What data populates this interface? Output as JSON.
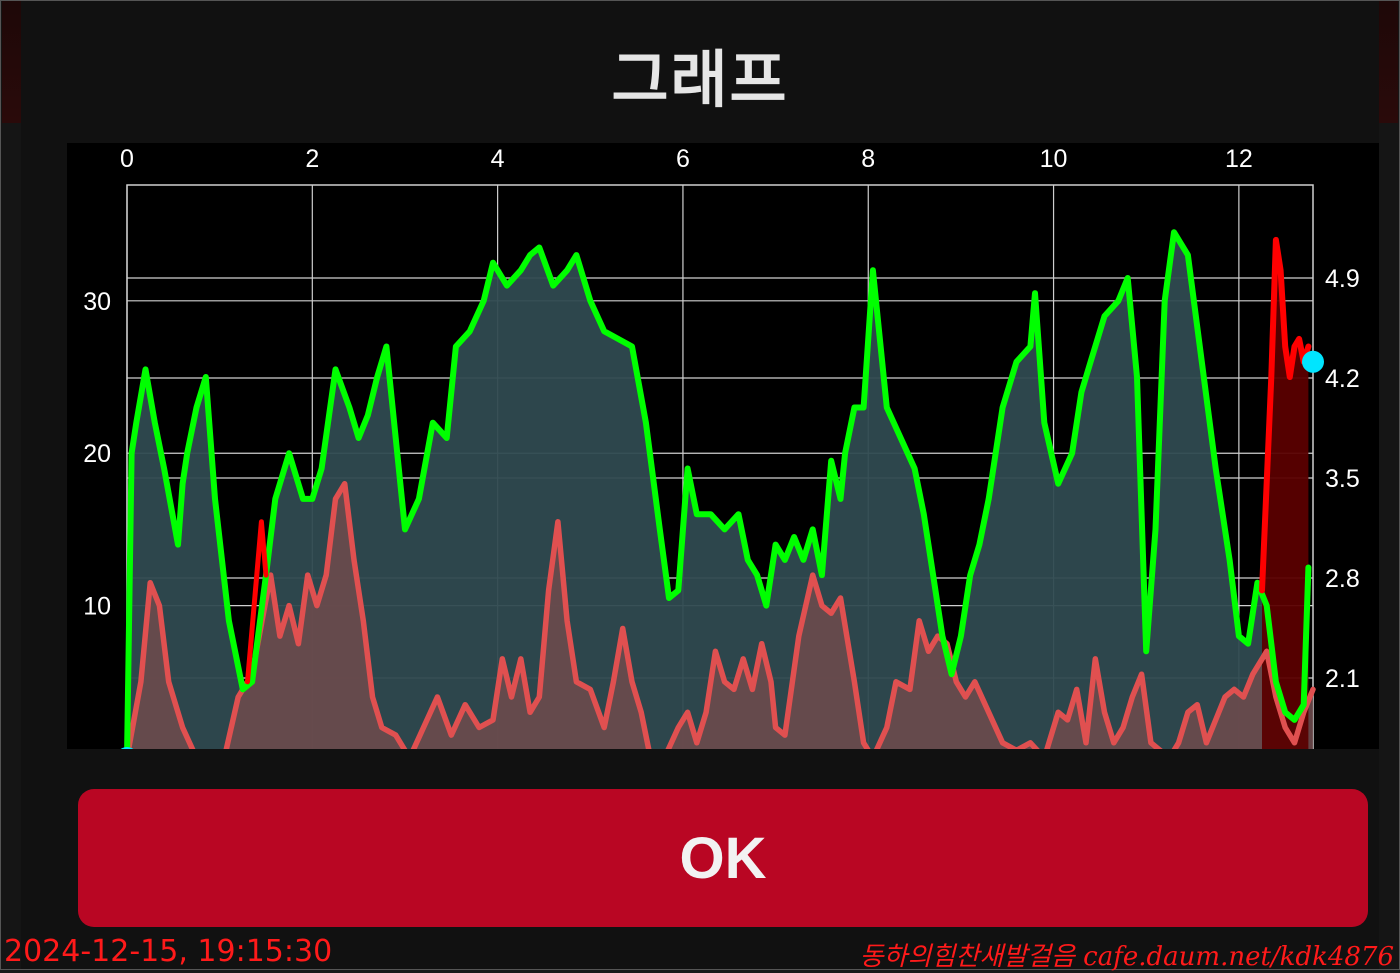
{
  "dialog": {
    "title": "그래프",
    "ok_label": "OK"
  },
  "watermark": {
    "timestamp": "2024-12-15, 19:15:30",
    "site": "동하의힘찬새발걸음 cafe.daum.net/kdk4876"
  },
  "colors": {
    "background": "#111111",
    "primary_line": "#00ff00",
    "primary_fill": "#2f4a50",
    "secondary_line": "#e05050",
    "secondary_fill": "#6b4a4d",
    "highlight_line": "#ff0000",
    "highlight_fill": "#5a0000",
    "marker": "#00e5ff",
    "button": "#b90623"
  },
  "chart_data": {
    "type": "area",
    "x_axis": {
      "position": "top",
      "ticks": [
        0,
        2,
        4,
        6,
        8,
        10,
        12
      ],
      "range": [
        0,
        12.8
      ]
    },
    "y_left": {
      "ticks": [
        10,
        20,
        30
      ],
      "range": [
        0,
        37.6
      ]
    },
    "y_right": {
      "ticks": [
        2.1,
        2.8,
        3.5,
        4.2,
        4.9
      ]
    },
    "grid": true,
    "series": [
      {
        "line_color": "#00ff00",
        "axis": "left",
        "points": [
          [
            0,
            0
          ],
          [
            0.05,
            20
          ],
          [
            0.1,
            22
          ],
          [
            0.2,
            25.5
          ],
          [
            0.3,
            22
          ],
          [
            0.4,
            19
          ],
          [
            0.55,
            14
          ],
          [
            0.6,
            18
          ],
          [
            0.65,
            20
          ],
          [
            0.75,
            23
          ],
          [
            0.85,
            25
          ],
          [
            0.95,
            17
          ],
          [
            1.1,
            9
          ],
          [
            1.25,
            4.5
          ],
          [
            1.35,
            5
          ],
          [
            1.5,
            12
          ],
          [
            1.6,
            17
          ],
          [
            1.75,
            20
          ],
          [
            1.9,
            17
          ],
          [
            2,
            17
          ],
          [
            2.1,
            19
          ],
          [
            2.25,
            25.5
          ],
          [
            2.4,
            23
          ],
          [
            2.5,
            21
          ],
          [
            2.6,
            22.5
          ],
          [
            2.7,
            25
          ],
          [
            2.8,
            27
          ],
          [
            2.9,
            21
          ],
          [
            3,
            15
          ],
          [
            3.15,
            17
          ],
          [
            3.3,
            22
          ],
          [
            3.45,
            21
          ],
          [
            3.55,
            27
          ],
          [
            3.7,
            28
          ],
          [
            3.85,
            30
          ],
          [
            3.95,
            32.5
          ],
          [
            4.1,
            31
          ],
          [
            4.25,
            32
          ],
          [
            4.35,
            33
          ],
          [
            4.45,
            33.5
          ],
          [
            4.6,
            31
          ],
          [
            4.75,
            32
          ],
          [
            4.85,
            33
          ],
          [
            5,
            30
          ],
          [
            5.15,
            28
          ],
          [
            5.3,
            27.5
          ],
          [
            5.45,
            27
          ],
          [
            5.6,
            22
          ],
          [
            5.75,
            15
          ],
          [
            5.85,
            10.5
          ],
          [
            5.95,
            11
          ],
          [
            6.05,
            19
          ],
          [
            6.15,
            16
          ],
          [
            6.3,
            16
          ],
          [
            6.45,
            15
          ],
          [
            6.6,
            16
          ],
          [
            6.7,
            13
          ],
          [
            6.8,
            12
          ],
          [
            6.9,
            10
          ],
          [
            7,
            14
          ],
          [
            7.1,
            13
          ],
          [
            7.2,
            14.5
          ],
          [
            7.3,
            13
          ],
          [
            7.4,
            15
          ],
          [
            7.5,
            12
          ],
          [
            7.6,
            19.5
          ],
          [
            7.7,
            17
          ],
          [
            7.75,
            20
          ],
          [
            7.85,
            23
          ],
          [
            7.95,
            23
          ],
          [
            8.05,
            32
          ],
          [
            8.2,
            23
          ],
          [
            8.35,
            21
          ],
          [
            8.5,
            19
          ],
          [
            8.6,
            16
          ],
          [
            8.7,
            12
          ],
          [
            8.8,
            8
          ],
          [
            8.9,
            5.5
          ],
          [
            9,
            8
          ],
          [
            9.1,
            12
          ],
          [
            9.2,
            14
          ],
          [
            9.3,
            17
          ],
          [
            9.45,
            23
          ],
          [
            9.6,
            26
          ],
          [
            9.75,
            27
          ],
          [
            9.8,
            30.5
          ],
          [
            9.9,
            22
          ],
          [
            10.05,
            18
          ],
          [
            10.2,
            20
          ],
          [
            10.3,
            24
          ],
          [
            10.4,
            26
          ],
          [
            10.55,
            29
          ],
          [
            10.7,
            30
          ],
          [
            10.8,
            31.5
          ],
          [
            10.9,
            25
          ],
          [
            11,
            7
          ],
          [
            11.1,
            15
          ],
          [
            11.2,
            30
          ],
          [
            11.3,
            34.5
          ],
          [
            11.45,
            33
          ],
          [
            11.6,
            26
          ],
          [
            11.75,
            19
          ],
          [
            11.9,
            13
          ],
          [
            12,
            8
          ],
          [
            12.1,
            7.5
          ],
          [
            12.2,
            11.5
          ],
          [
            12.3,
            10
          ],
          [
            12.4,
            5
          ],
          [
            12.5,
            3
          ],
          [
            12.6,
            2.5
          ],
          [
            12.7,
            3.5
          ],
          [
            12.75,
            12.5
          ]
        ]
      },
      {
        "line_color": "#e05050",
        "axis": "left",
        "points": [
          [
            0,
            0
          ],
          [
            0.15,
            5
          ],
          [
            0.25,
            11.5
          ],
          [
            0.35,
            10
          ],
          [
            0.45,
            5
          ],
          [
            0.6,
            2
          ],
          [
            0.75,
            0
          ],
          [
            1.05,
            0
          ],
          [
            1.2,
            4
          ],
          [
            1.35,
            5.5
          ],
          [
            1.55,
            12
          ],
          [
            1.65,
            8
          ],
          [
            1.75,
            10
          ],
          [
            1.85,
            7.5
          ],
          [
            1.95,
            12
          ],
          [
            2.05,
            10
          ],
          [
            2.15,
            12
          ],
          [
            2.25,
            17
          ],
          [
            2.35,
            18
          ],
          [
            2.45,
            13
          ],
          [
            2.55,
            9
          ],
          [
            2.65,
            4
          ],
          [
            2.75,
            2
          ],
          [
            2.9,
            1.5
          ],
          [
            3.05,
            0
          ],
          [
            3.2,
            2
          ],
          [
            3.35,
            4
          ],
          [
            3.5,
            1.5
          ],
          [
            3.65,
            3.5
          ],
          [
            3.8,
            2
          ],
          [
            3.95,
            2.5
          ],
          [
            4.05,
            6.5
          ],
          [
            4.15,
            4
          ],
          [
            4.25,
            6.5
          ],
          [
            4.35,
            3
          ],
          [
            4.45,
            4
          ],
          [
            4.55,
            11
          ],
          [
            4.65,
            15.5
          ],
          [
            4.75,
            9
          ],
          [
            4.85,
            5
          ],
          [
            5,
            4.5
          ],
          [
            5.15,
            2
          ],
          [
            5.25,
            5
          ],
          [
            5.35,
            8.5
          ],
          [
            5.45,
            5
          ],
          [
            5.55,
            3
          ],
          [
            5.65,
            0
          ],
          [
            5.8,
            0
          ],
          [
            5.95,
            2
          ],
          [
            6.05,
            3
          ],
          [
            6.15,
            1
          ],
          [
            6.25,
            3
          ],
          [
            6.35,
            7
          ],
          [
            6.45,
            5
          ],
          [
            6.55,
            4.5
          ],
          [
            6.65,
            6.5
          ],
          [
            6.75,
            4.5
          ],
          [
            6.85,
            7.5
          ],
          [
            6.95,
            5
          ],
          [
            7,
            2
          ],
          [
            7.1,
            1.5
          ],
          [
            7.25,
            8
          ],
          [
            7.4,
            12
          ],
          [
            7.5,
            10
          ],
          [
            7.6,
            9.5
          ],
          [
            7.7,
            10.5
          ],
          [
            7.85,
            5
          ],
          [
            7.95,
            1
          ],
          [
            8.05,
            0
          ],
          [
            8.2,
            2
          ],
          [
            8.3,
            5
          ],
          [
            8.45,
            4.5
          ],
          [
            8.55,
            9
          ],
          [
            8.65,
            7
          ],
          [
            8.75,
            8
          ],
          [
            8.85,
            7.5
          ],
          [
            8.95,
            5
          ],
          [
            9.05,
            4
          ],
          [
            9.15,
            5
          ],
          [
            9.3,
            3
          ],
          [
            9.45,
            1
          ],
          [
            9.6,
            0.5
          ],
          [
            9.75,
            1
          ],
          [
            9.9,
            0
          ],
          [
            10.05,
            3
          ],
          [
            10.15,
            2.5
          ],
          [
            10.25,
            4.5
          ],
          [
            10.35,
            1
          ],
          [
            10.45,
            6.5
          ],
          [
            10.55,
            3
          ],
          [
            10.65,
            1
          ],
          [
            10.75,
            2
          ],
          [
            10.85,
            4
          ],
          [
            10.95,
            5.5
          ],
          [
            11.05,
            1
          ],
          [
            11.15,
            0.5
          ],
          [
            11.25,
            0
          ],
          [
            11.35,
            1
          ],
          [
            11.45,
            3
          ],
          [
            11.55,
            3.5
          ],
          [
            11.65,
            1
          ],
          [
            11.75,
            2.5
          ],
          [
            11.85,
            4
          ],
          [
            11.95,
            4.5
          ],
          [
            12.05,
            4
          ],
          [
            12.15,
            5.5
          ],
          [
            12.3,
            7
          ],
          [
            12.4,
            4
          ],
          [
            12.5,
            2
          ],
          [
            12.6,
            1
          ],
          [
            12.7,
            3
          ],
          [
            12.8,
            4.5
          ]
        ]
      },
      {
        "line_color": "#ff0000",
        "axis": "left",
        "points": [
          [
            12.25,
            11
          ],
          [
            12.35,
            25
          ],
          [
            12.4,
            34
          ],
          [
            12.45,
            32
          ],
          [
            12.5,
            27
          ],
          [
            12.55,
            25
          ],
          [
            12.6,
            27
          ],
          [
            12.65,
            27.5
          ],
          [
            12.7,
            26
          ],
          [
            12.75,
            27
          ]
        ]
      },
      {
        "line_color": "#ff0000",
        "axis": "left",
        "points": [
          [
            1.3,
            5
          ],
          [
            1.45,
            15.5
          ],
          [
            1.5,
            12
          ]
        ]
      }
    ],
    "markers": [
      {
        "x": 0,
        "y": 0,
        "color": "#00e5ff"
      },
      {
        "x": 12.8,
        "y": 26,
        "color": "#00e5ff"
      }
    ]
  }
}
